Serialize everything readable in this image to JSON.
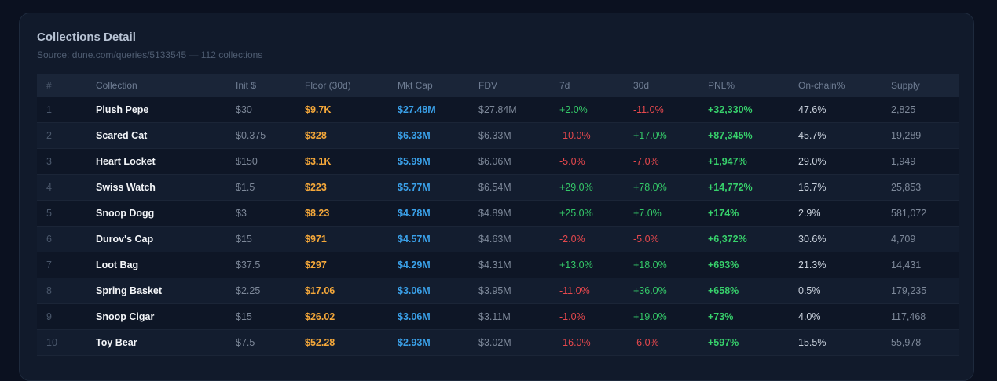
{
  "panel": {
    "title": "Collections Detail",
    "subtitle": "Source: dune.com/queries/5133545 — 112 collections"
  },
  "columns": {
    "idx": "#",
    "collection": "Collection",
    "init": "Init $",
    "floor": "Floor (30d)",
    "mcap": "Mkt Cap",
    "fdv": "FDV",
    "d7": "7d",
    "d30": "30d",
    "pnl": "PNL%",
    "onchain": "On-chain%",
    "supply": "Supply"
  },
  "rows": [
    {
      "idx": "1",
      "collection": "Plush Pepe",
      "init": "$30",
      "floor": "$9.7K",
      "mcap": "$27.48M",
      "fdv": "$27.84M",
      "d7": "+2.0%",
      "d30": "-11.0%",
      "pnl": "+32,330%",
      "onchain": "47.6%",
      "supply": "2,825"
    },
    {
      "idx": "2",
      "collection": "Scared Cat",
      "init": "$0.375",
      "floor": "$328",
      "mcap": "$6.33M",
      "fdv": "$6.33M",
      "d7": "-10.0%",
      "d30": "+17.0%",
      "pnl": "+87,345%",
      "onchain": "45.7%",
      "supply": "19,289"
    },
    {
      "idx": "3",
      "collection": "Heart Locket",
      "init": "$150",
      "floor": "$3.1K",
      "mcap": "$5.99M",
      "fdv": "$6.06M",
      "d7": "-5.0%",
      "d30": "-7.0%",
      "pnl": "+1,947%",
      "onchain": "29.0%",
      "supply": "1,949"
    },
    {
      "idx": "4",
      "collection": "Swiss Watch",
      "init": "$1.5",
      "floor": "$223",
      "mcap": "$5.77M",
      "fdv": "$6.54M",
      "d7": "+29.0%",
      "d30": "+78.0%",
      "pnl": "+14,772%",
      "onchain": "16.7%",
      "supply": "25,853"
    },
    {
      "idx": "5",
      "collection": "Snoop Dogg",
      "init": "$3",
      "floor": "$8.23",
      "mcap": "$4.78M",
      "fdv": "$4.89M",
      "d7": "+25.0%",
      "d30": "+7.0%",
      "pnl": "+174%",
      "onchain": "2.9%",
      "supply": "581,072"
    },
    {
      "idx": "6",
      "collection": "Durov's Cap",
      "init": "$15",
      "floor": "$971",
      "mcap": "$4.57M",
      "fdv": "$4.63M",
      "d7": "-2.0%",
      "d30": "-5.0%",
      "pnl": "+6,372%",
      "onchain": "30.6%",
      "supply": "4,709"
    },
    {
      "idx": "7",
      "collection": "Loot Bag",
      "init": "$37.5",
      "floor": "$297",
      "mcap": "$4.29M",
      "fdv": "$4.31M",
      "d7": "+13.0%",
      "d30": "+18.0%",
      "pnl": "+693%",
      "onchain": "21.3%",
      "supply": "14,431"
    },
    {
      "idx": "8",
      "collection": "Spring Basket",
      "init": "$2.25",
      "floor": "$17.06",
      "mcap": "$3.06M",
      "fdv": "$3.95M",
      "d7": "-11.0%",
      "d30": "+36.0%",
      "pnl": "+658%",
      "onchain": "0.5%",
      "supply": "179,235"
    },
    {
      "idx": "9",
      "collection": "Snoop Cigar",
      "init": "$15",
      "floor": "$26.02",
      "mcap": "$3.06M",
      "fdv": "$3.11M",
      "d7": "-1.0%",
      "d30": "+19.0%",
      "pnl": "+73%",
      "onchain": "4.0%",
      "supply": "117,468"
    },
    {
      "idx": "10",
      "collection": "Toy Bear",
      "init": "$7.5",
      "floor": "$52.28",
      "mcap": "$2.93M",
      "fdv": "$3.02M",
      "d7": "-16.0%",
      "d30": "-6.0%",
      "pnl": "+597%",
      "onchain": "15.5%",
      "supply": "55,978"
    }
  ]
}
